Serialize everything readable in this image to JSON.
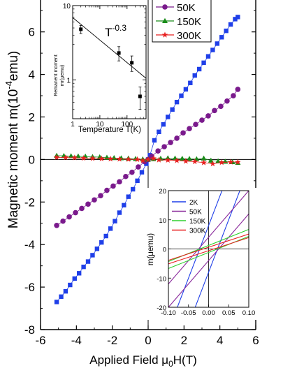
{
  "chart_data": [
    {
      "type": "scatter",
      "xlabel": "Applied Field μ0H(T)",
      "ylabel_main": "Magnetic moment m(10",
      "ylabel_exp": "-4",
      "ylabel_unit": "emu)",
      "xlim": [
        -6,
        6
      ],
      "ylim": [
        -8,
        7.5
      ],
      "xticks": [
        -6,
        -4,
        -2,
        0,
        2,
        4,
        6
      ],
      "yticks": [
        -8,
        -6,
        -4,
        -2,
        0,
        2,
        4,
        6
      ],
      "legend_position": "top-right",
      "series": [
        {
          "name": "2K",
          "color": "#1f3fe8",
          "marker": "square",
          "x": [
            -5.1,
            -4.85,
            -4.6,
            -4.35,
            -4.1,
            -3.85,
            -3.6,
            -3.35,
            -3.1,
            -2.85,
            -2.6,
            -2.35,
            -2.1,
            -1.85,
            -1.6,
            -1.35,
            -1.1,
            -0.85,
            -0.6,
            -0.35,
            -0.1,
            0,
            0.1,
            0.35,
            0.6,
            0.85,
            1.1,
            1.35,
            1.6,
            1.85,
            2.1,
            2.35,
            2.6,
            2.85,
            3.1,
            3.35,
            3.6,
            3.85,
            4.1,
            4.35,
            4.6,
            4.85,
            5.0
          ],
          "y": [
            -6.7,
            -6.45,
            -6.2,
            -5.9,
            -5.6,
            -5.35,
            -5.05,
            -4.8,
            -4.5,
            -4.2,
            -3.9,
            -3.6,
            -3.25,
            -2.9,
            -2.5,
            -2.15,
            -1.75,
            -1.4,
            -1.0,
            -0.6,
            -0.2,
            0,
            0.2,
            0.9,
            1.3,
            1.65,
            2.0,
            2.35,
            2.7,
            3.0,
            3.3,
            3.6,
            3.95,
            4.25,
            4.55,
            4.85,
            5.15,
            5.45,
            5.75,
            6.05,
            6.35,
            6.6,
            6.7
          ]
        },
        {
          "name": "50K",
          "color": "#7a1a8c",
          "marker": "circle",
          "x": [
            -5.1,
            -4.75,
            -4.4,
            -4.05,
            -3.7,
            -3.35,
            -3.0,
            -2.65,
            -2.3,
            -1.95,
            -1.6,
            -1.25,
            -0.9,
            -0.55,
            -0.2,
            0,
            0.2,
            0.55,
            0.9,
            1.25,
            1.6,
            1.95,
            2.3,
            2.65,
            3.0,
            3.35,
            3.7,
            4.05,
            4.4,
            4.75,
            5.0
          ],
          "y": [
            -3.1,
            -2.9,
            -2.7,
            -2.5,
            -2.3,
            -2.1,
            -1.9,
            -1.7,
            -1.45,
            -1.25,
            -1.05,
            -0.8,
            -0.6,
            -0.35,
            -0.1,
            0,
            0.15,
            0.4,
            0.6,
            0.8,
            1.0,
            1.25,
            1.45,
            1.65,
            1.85,
            2.05,
            2.3,
            2.5,
            2.75,
            3.0,
            3.3
          ]
        },
        {
          "name": "150K",
          "color": "#1a8c1a",
          "marker": "triangle",
          "x": [
            -5.1,
            -4.7,
            -4.3,
            -3.9,
            -3.5,
            -3.1,
            -2.7,
            -2.3,
            -1.9,
            -1.5,
            -1.1,
            -0.7,
            -0.3,
            0,
            0.3,
            0.7,
            1.1,
            1.5,
            1.9,
            2.3,
            2.7,
            3.1,
            3.5,
            3.9,
            4.3,
            4.7,
            5.0
          ],
          "y": [
            0.18,
            0.17,
            0.16,
            0.15,
            0.14,
            0.12,
            0.11,
            0.09,
            0.07,
            0.06,
            0.05,
            0.03,
            0.01,
            0,
            0.02,
            0.04,
            0.06,
            0.05,
            0.04,
            0.03,
            0.02,
            0.05,
            -0.05,
            -0.08,
            -0.1,
            -0.12,
            -0.15
          ]
        },
        {
          "name": "300K",
          "color": "#e82020",
          "marker": "star",
          "x": [
            -5.1,
            -4.6,
            -4.1,
            -3.6,
            -3.1,
            -2.6,
            -2.1,
            -1.6,
            -1.1,
            -0.6,
            -0.3,
            0,
            0.3,
            0.6,
            1.1,
            1.6,
            2.1,
            2.6,
            3.1,
            3.6,
            4.1,
            4.6,
            5.0
          ],
          "y": [
            0.1,
            0.09,
            0.08,
            0.06,
            0.05,
            0.04,
            0.03,
            0.02,
            0.01,
            0.0,
            -0.05,
            0,
            0.05,
            -0.02,
            -0.03,
            -0.05,
            -0.08,
            -0.1,
            -0.15,
            -0.2,
            -0.14,
            -0.12,
            -0.12
          ]
        }
      ]
    },
    {
      "type": "scatter",
      "position": "top-left inset",
      "scale": "log-log",
      "xlabel": "Temperature T(K)",
      "ylabel": "Remanent moment",
      "ylabel_sub": "mr(μemu)",
      "annotation_base": "T",
      "annotation_exp": "-0.3",
      "xlim": [
        1,
        500
      ],
      "ylim": [
        0.3,
        10
      ],
      "xticks": [
        1,
        10,
        100
      ],
      "yticks": [
        1,
        10
      ],
      "fit_line": {
        "x": [
          1,
          500
        ],
        "y": [
          6.9,
          1.05
        ]
      },
      "points": [
        {
          "x": 2,
          "y": 4.8,
          "err": 0.6
        },
        {
          "x": 50,
          "y": 2.3,
          "err": 0.5
        },
        {
          "x": 150,
          "y": 1.7,
          "err": 0.4
        },
        {
          "x": 300,
          "y": 0.6,
          "err": 0.2
        }
      ]
    },
    {
      "type": "line",
      "position": "bottom-right inset",
      "ylabel": "m(μemu)",
      "xlim": [
        -0.1,
        0.1
      ],
      "ylim": [
        -20,
        20
      ],
      "xticks": [
        -0.1,
        -0.05,
        0.0,
        0.05,
        0.1
      ],
      "xtick_labels": [
        "-0.10",
        "-0.05",
        "0.00",
        "0.05",
        "0.10"
      ],
      "yticks": [
        -20,
        -10,
        0,
        10,
        20
      ],
      "legend_position": "top-left",
      "series": [
        {
          "name": "2K",
          "color": "#1f3fe8",
          "slope": 360,
          "offset": 8
        },
        {
          "name": "50K",
          "color": "#8a2a9c",
          "slope": 160,
          "offset": 4
        },
        {
          "name": "150K",
          "color": "#30d030",
          "slope": 55,
          "offset": 1.2
        },
        {
          "name": "300K",
          "color": "#e82020",
          "slope": 45,
          "offset": 0.6
        }
      ]
    }
  ]
}
